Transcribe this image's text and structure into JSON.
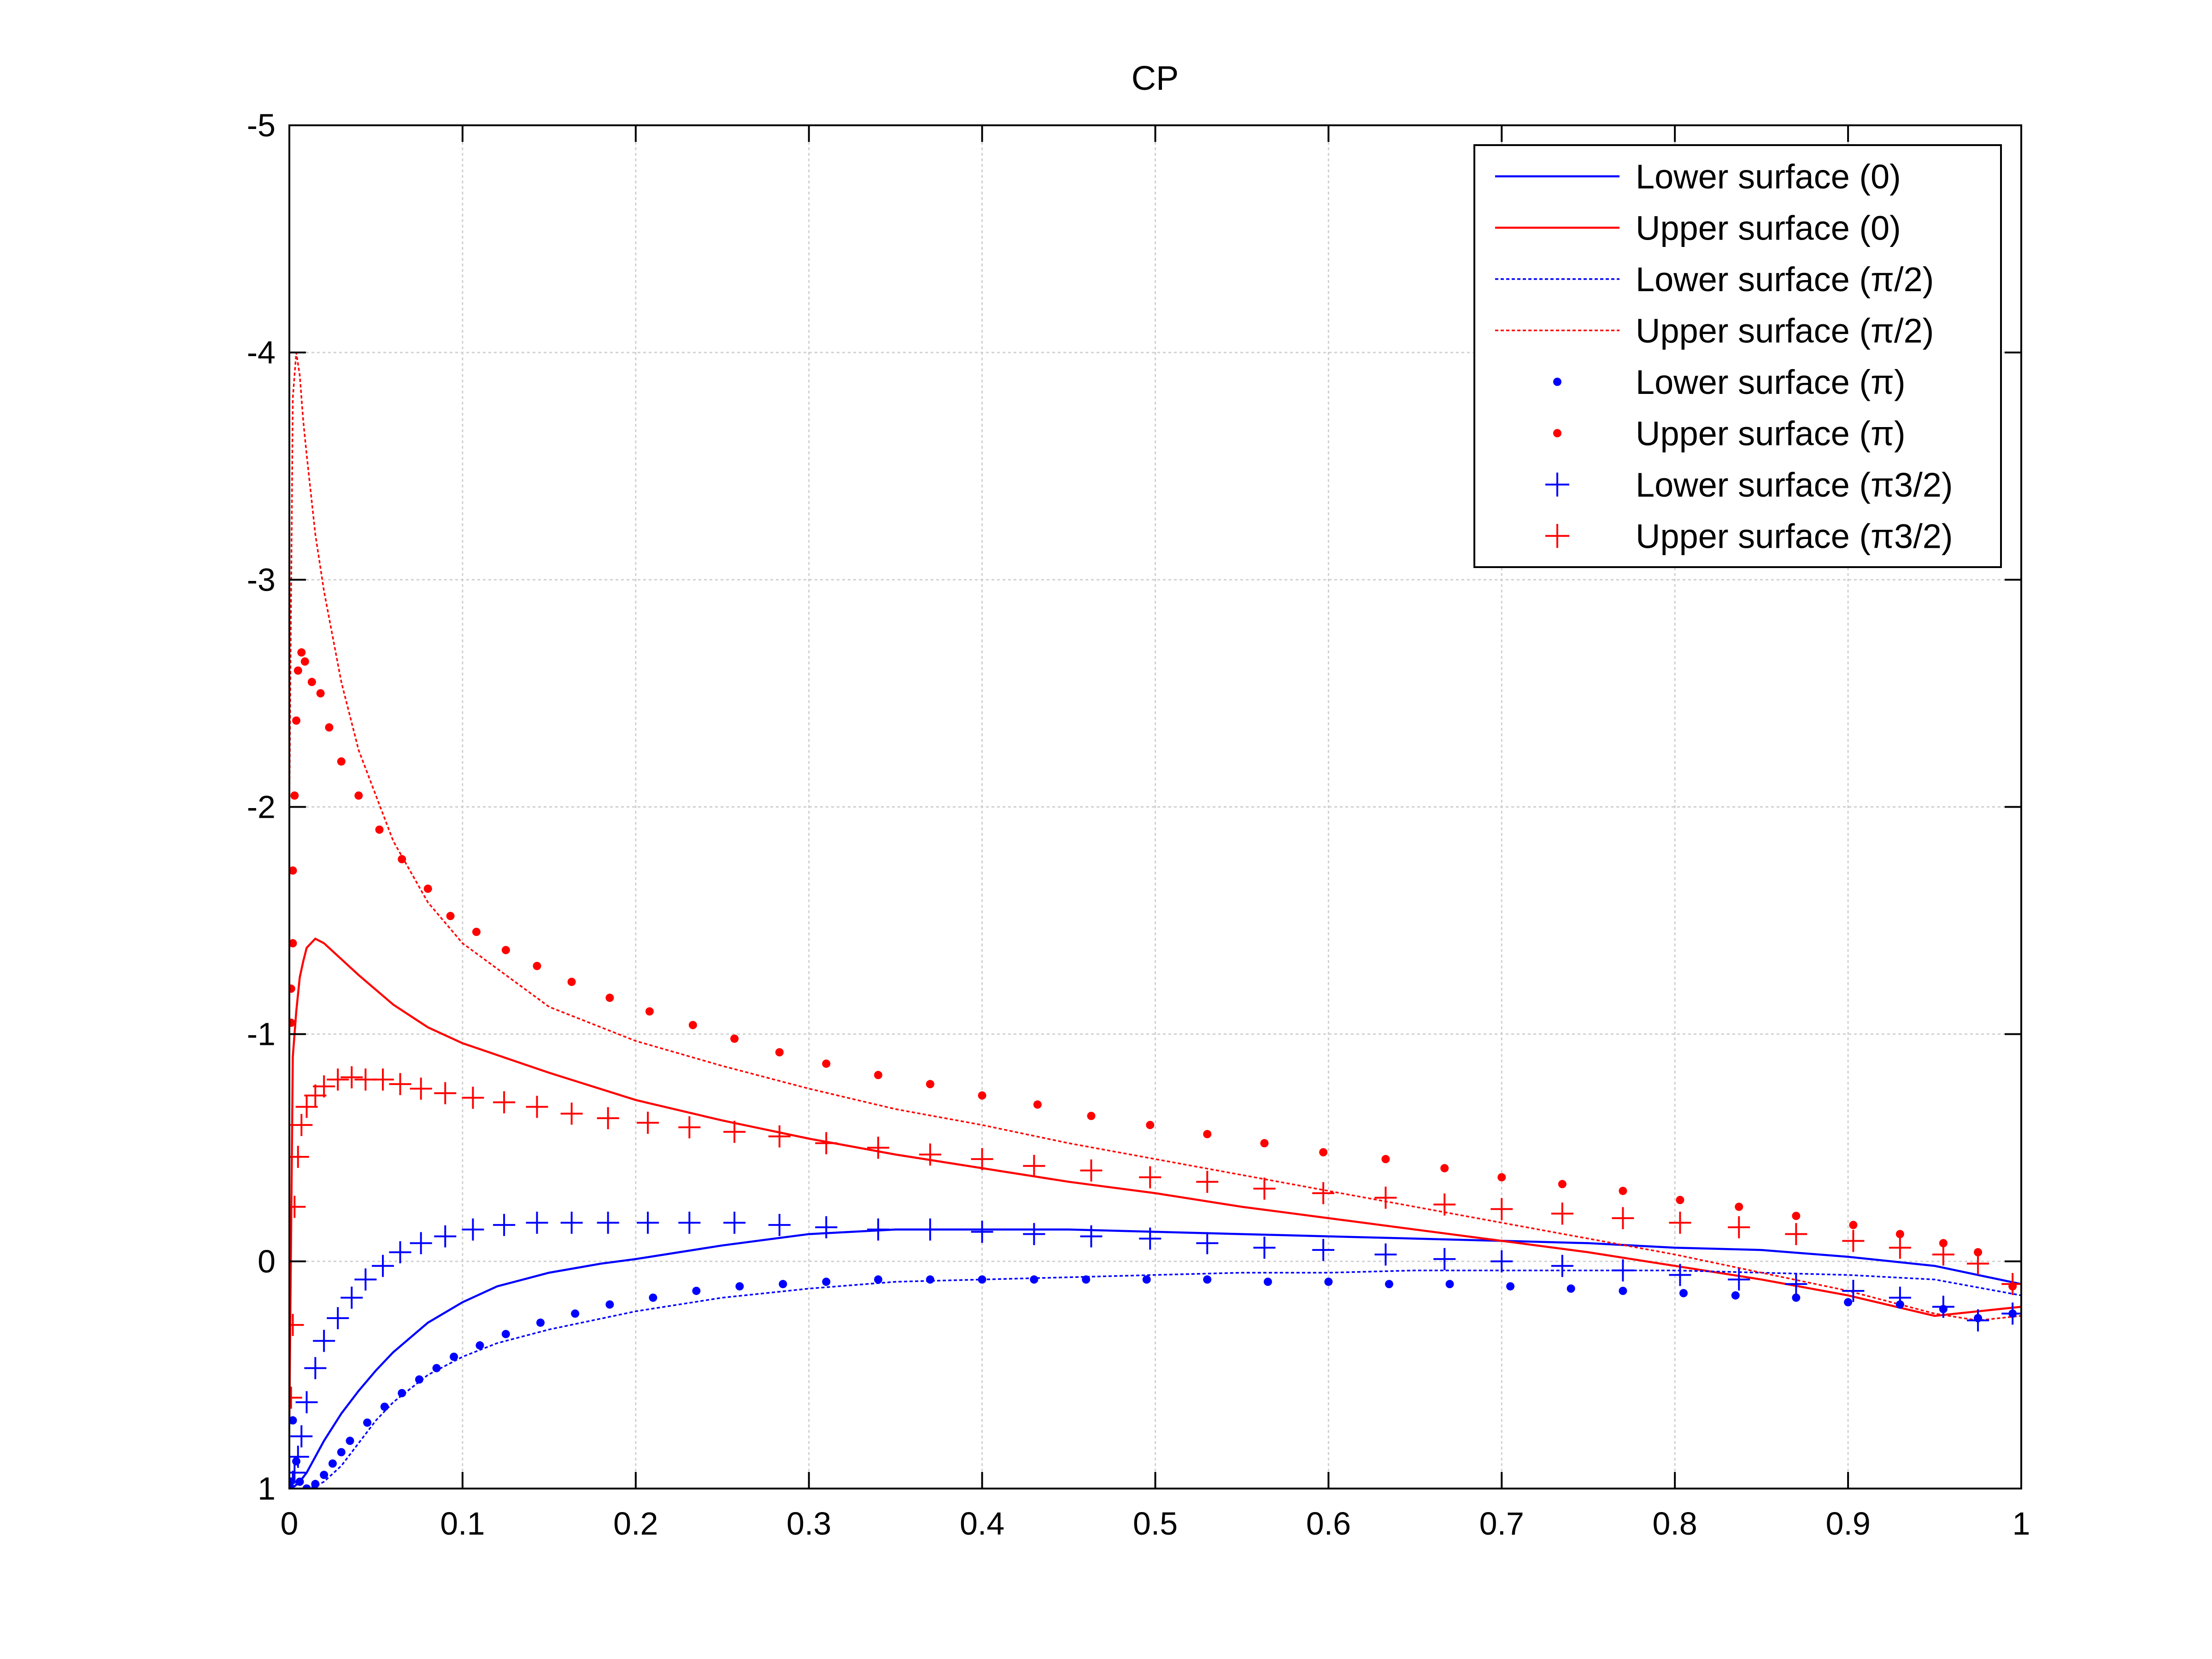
{
  "chart_data": {
    "type": "line",
    "title": "CP",
    "xlabel": "",
    "ylabel": "",
    "xlim": [
      0,
      1
    ],
    "ylim": [
      -5,
      1
    ],
    "y_reversed": true,
    "grid": true,
    "legend_position": "top-right",
    "x_ticks": [
      0,
      0.1,
      0.2,
      0.3,
      0.4,
      0.5,
      0.6,
      0.7,
      0.8,
      0.9,
      1
    ],
    "x_tick_labels": [
      "0",
      "0.1",
      "0.2",
      "0.3",
      "0.4",
      "0.5",
      "0.6",
      "0.7",
      "0.8",
      "0.9",
      "1"
    ],
    "y_ticks": [
      -5,
      -4,
      -3,
      -2,
      -1,
      0,
      1
    ],
    "y_tick_labels": [
      "-5",
      "-4",
      "-3",
      "-2",
      "-1",
      "0",
      "1"
    ],
    "series": [
      {
        "name": "Lower surface (0)",
        "color": "#0000ff",
        "style": "solid",
        "x": [
          0.0,
          0.003,
          0.006,
          0.01,
          0.015,
          0.02,
          0.03,
          0.04,
          0.05,
          0.06,
          0.08,
          0.1,
          0.12,
          0.15,
          0.18,
          0.2,
          0.25,
          0.3,
          0.35,
          0.4,
          0.45,
          0.5,
          0.55,
          0.6,
          0.65,
          0.7,
          0.75,
          0.8,
          0.85,
          0.9,
          0.95,
          1.0
        ],
        "y": [
          1.0,
          0.99,
          0.97,
          0.93,
          0.86,
          0.79,
          0.67,
          0.57,
          0.48,
          0.4,
          0.27,
          0.18,
          0.11,
          0.05,
          0.01,
          -0.01,
          -0.07,
          -0.12,
          -0.14,
          -0.14,
          -0.14,
          -0.13,
          -0.12,
          -0.11,
          -0.1,
          -0.09,
          -0.08,
          -0.06,
          -0.05,
          -0.02,
          0.02,
          0.1
        ]
      },
      {
        "name": "Upper surface (0)",
        "color": "#ff0000",
        "style": "solid",
        "x": [
          0.0,
          0.002,
          0.004,
          0.006,
          0.008,
          0.01,
          0.015,
          0.02,
          0.03,
          0.04,
          0.06,
          0.08,
          0.1,
          0.15,
          0.2,
          0.25,
          0.3,
          0.35,
          0.4,
          0.45,
          0.5,
          0.55,
          0.6,
          0.65,
          0.7,
          0.75,
          0.8,
          0.85,
          0.9,
          0.95,
          0.975,
          1.0
        ],
        "y": [
          0.7,
          -0.9,
          -1.1,
          -1.25,
          -1.32,
          -1.38,
          -1.42,
          -1.4,
          -1.33,
          -1.26,
          -1.13,
          -1.03,
          -0.96,
          -0.83,
          -0.71,
          -0.62,
          -0.54,
          -0.47,
          -0.41,
          -0.35,
          -0.3,
          -0.24,
          -0.19,
          -0.14,
          -0.09,
          -0.04,
          0.02,
          0.08,
          0.15,
          0.24,
          0.22,
          0.2
        ]
      },
      {
        "name": "Lower surface (π/2)",
        "color": "#0000ff",
        "style": "dotted",
        "x": [
          0.0,
          0.005,
          0.01,
          0.015,
          0.02,
          0.03,
          0.04,
          0.05,
          0.06,
          0.08,
          0.1,
          0.12,
          0.15,
          0.2,
          0.25,
          0.3,
          0.35,
          0.4,
          0.45,
          0.5,
          0.55,
          0.6,
          0.65,
          0.7,
          0.75,
          0.8,
          0.85,
          0.9,
          0.95,
          1.0
        ],
        "y": [
          1.0,
          1.0,
          1.0,
          0.99,
          0.97,
          0.9,
          0.8,
          0.7,
          0.62,
          0.5,
          0.42,
          0.36,
          0.3,
          0.22,
          0.16,
          0.12,
          0.09,
          0.08,
          0.07,
          0.06,
          0.05,
          0.05,
          0.04,
          0.04,
          0.04,
          0.04,
          0.05,
          0.06,
          0.08,
          0.15
        ]
      },
      {
        "name": "Upper surface (π/2)",
        "color": "#ff0000",
        "style": "dotted",
        "x": [
          0.0,
          0.002,
          0.004,
          0.006,
          0.008,
          0.01,
          0.015,
          0.02,
          0.03,
          0.04,
          0.06,
          0.08,
          0.1,
          0.15,
          0.2,
          0.25,
          0.3,
          0.35,
          0.4,
          0.45,
          0.5,
          0.55,
          0.6,
          0.65,
          0.7,
          0.75,
          0.8,
          0.85,
          0.9,
          0.95,
          0.975,
          1.0
        ],
        "y": [
          -2.0,
          -3.8,
          -4.0,
          -3.9,
          -3.7,
          -3.55,
          -3.2,
          -2.95,
          -2.55,
          -2.25,
          -1.85,
          -1.58,
          -1.4,
          -1.12,
          -0.97,
          -0.86,
          -0.76,
          -0.67,
          -0.6,
          -0.52,
          -0.45,
          -0.38,
          -0.31,
          -0.24,
          -0.17,
          -0.1,
          -0.03,
          0.05,
          0.13,
          0.23,
          0.26,
          0.24
        ]
      },
      {
        "name": "Lower surface (π)",
        "color": "#0000ff",
        "style": "dot-markers",
        "x": [
          0.002,
          0.004,
          0.006,
          0.01,
          0.015,
          0.02,
          0.025,
          0.03,
          0.035,
          0.045,
          0.055,
          0.065,
          0.075,
          0.085,
          0.095,
          0.11,
          0.125,
          0.145,
          0.165,
          0.185,
          0.21,
          0.235,
          0.26,
          0.285,
          0.31,
          0.34,
          0.37,
          0.4,
          0.43,
          0.46,
          0.495,
          0.53,
          0.565,
          0.6,
          0.635,
          0.67,
          0.705,
          0.74,
          0.77,
          0.805,
          0.835,
          0.87,
          0.9,
          0.93,
          0.955,
          0.975,
          0.995
        ],
        "y": [
          0.7,
          0.88,
          0.97,
          1.0,
          0.98,
          0.94,
          0.89,
          0.84,
          0.79,
          0.71,
          0.64,
          0.58,
          0.52,
          0.47,
          0.42,
          0.37,
          0.32,
          0.27,
          0.23,
          0.19,
          0.16,
          0.13,
          0.11,
          0.1,
          0.09,
          0.08,
          0.08,
          0.08,
          0.08,
          0.08,
          0.08,
          0.08,
          0.09,
          0.09,
          0.1,
          0.1,
          0.11,
          0.12,
          0.13,
          0.14,
          0.15,
          0.16,
          0.18,
          0.19,
          0.21,
          0.25,
          0.23
        ]
      },
      {
        "name": "Upper surface (π)",
        "color": "#ff0000",
        "style": "dot-markers",
        "x": [
          0.001,
          0.001,
          0.002,
          0.002,
          0.003,
          0.004,
          0.005,
          0.007,
          0.009,
          0.013,
          0.018,
          0.023,
          0.03,
          0.04,
          0.052,
          0.065,
          0.08,
          0.093,
          0.108,
          0.125,
          0.143,
          0.163,
          0.185,
          0.208,
          0.233,
          0.257,
          0.283,
          0.31,
          0.34,
          0.37,
          0.4,
          0.432,
          0.463,
          0.497,
          0.53,
          0.563,
          0.597,
          0.633,
          0.667,
          0.7,
          0.735,
          0.77,
          0.803,
          0.837,
          0.87,
          0.903,
          0.93,
          0.955,
          0.975,
          0.995
        ],
        "y": [
          -1.05,
          -1.2,
          -1.4,
          -1.72,
          -2.05,
          -2.38,
          -2.6,
          -2.68,
          -2.64,
          -2.55,
          -2.5,
          -2.35,
          -2.2,
          -2.05,
          -1.9,
          -1.77,
          -1.64,
          -1.52,
          -1.45,
          -1.37,
          -1.3,
          -1.23,
          -1.16,
          -1.1,
          -1.04,
          -0.98,
          -0.92,
          -0.87,
          -0.82,
          -0.78,
          -0.73,
          -0.69,
          -0.64,
          -0.6,
          -0.56,
          -0.52,
          -0.48,
          -0.45,
          -0.41,
          -0.37,
          -0.34,
          -0.31,
          -0.27,
          -0.24,
          -0.2,
          -0.16,
          -0.12,
          -0.08,
          -0.04,
          0.11
        ]
      },
      {
        "name": "Lower surface (π3/2)",
        "color": "#0000ff",
        "style": "plus-markers",
        "x": [
          0.001,
          0.002,
          0.003,
          0.005,
          0.007,
          0.01,
          0.015,
          0.02,
          0.028,
          0.036,
          0.044,
          0.054,
          0.064,
          0.076,
          0.09,
          0.106,
          0.124,
          0.143,
          0.163,
          0.184,
          0.207,
          0.231,
          0.257,
          0.283,
          0.31,
          0.34,
          0.37,
          0.4,
          0.43,
          0.463,
          0.497,
          0.53,
          0.563,
          0.597,
          0.633,
          0.667,
          0.7,
          0.735,
          0.77,
          0.803,
          0.837,
          0.87,
          0.903,
          0.93,
          0.955,
          0.975,
          0.995
        ],
        "y": [
          1.0,
          0.97,
          0.93,
          0.86,
          0.77,
          0.62,
          0.47,
          0.35,
          0.25,
          0.16,
          0.08,
          0.02,
          -0.04,
          -0.08,
          -0.11,
          -0.14,
          -0.16,
          -0.17,
          -0.17,
          -0.17,
          -0.17,
          -0.17,
          -0.17,
          -0.16,
          -0.15,
          -0.14,
          -0.14,
          -0.13,
          -0.12,
          -0.11,
          -0.1,
          -0.08,
          -0.06,
          -0.05,
          -0.03,
          -0.01,
          0.0,
          0.02,
          0.04,
          0.06,
          0.08,
          0.1,
          0.13,
          0.16,
          0.2,
          0.26,
          0.23
        ]
      },
      {
        "name": "Upper surface (π3/2)",
        "color": "#ff0000",
        "style": "plus-markers",
        "x": [
          0.001,
          0.002,
          0.003,
          0.005,
          0.007,
          0.01,
          0.015,
          0.02,
          0.028,
          0.036,
          0.044,
          0.054,
          0.064,
          0.076,
          0.09,
          0.106,
          0.124,
          0.143,
          0.163,
          0.184,
          0.207,
          0.231,
          0.257,
          0.283,
          0.31,
          0.34,
          0.37,
          0.4,
          0.43,
          0.463,
          0.497,
          0.53,
          0.563,
          0.597,
          0.633,
          0.667,
          0.7,
          0.735,
          0.77,
          0.803,
          0.837,
          0.87,
          0.903,
          0.93,
          0.955,
          0.975,
          0.995
        ],
        "y": [
          0.6,
          0.28,
          -0.24,
          -0.46,
          -0.6,
          -0.68,
          -0.73,
          -0.77,
          -0.8,
          -0.81,
          -0.8,
          -0.8,
          -0.78,
          -0.76,
          -0.74,
          -0.72,
          -0.7,
          -0.68,
          -0.65,
          -0.63,
          -0.61,
          -0.59,
          -0.57,
          -0.55,
          -0.52,
          -0.5,
          -0.47,
          -0.45,
          -0.42,
          -0.4,
          -0.37,
          -0.35,
          -0.32,
          -0.3,
          -0.28,
          -0.25,
          -0.23,
          -0.21,
          -0.19,
          -0.17,
          -0.15,
          -0.12,
          -0.09,
          -0.06,
          -0.03,
          0.01,
          0.1
        ]
      }
    ]
  }
}
